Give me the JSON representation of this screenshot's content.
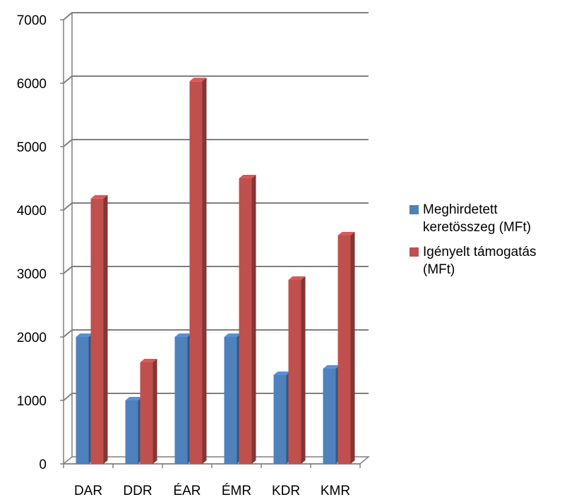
{
  "chart_data": {
    "type": "bar",
    "categories": [
      "DAR",
      "DDR",
      "ÉAR",
      "ÉMR",
      "KDR",
      "KMR"
    ],
    "series": [
      {
        "name": "Meghirdetett keretösszeg (MFt)",
        "color": "#4F81BD",
        "values": [
          2000,
          1000,
          2000,
          2000,
          1400,
          1500
        ]
      },
      {
        "name": "Igényelt támogatás (MFt)",
        "color": "#C0504D",
        "values": [
          4180,
          1600,
          6030,
          4500,
          2900,
          3600
        ]
      }
    ],
    "yticks": [
      0,
      1000,
      2000,
      3000,
      4000,
      5000,
      6000,
      7000
    ],
    "ylim": [
      0,
      7000
    ],
    "grid": true,
    "legend_position": "right",
    "style": "3d-clustered-column",
    "title": "",
    "xlabel": "",
    "ylabel": ""
  }
}
